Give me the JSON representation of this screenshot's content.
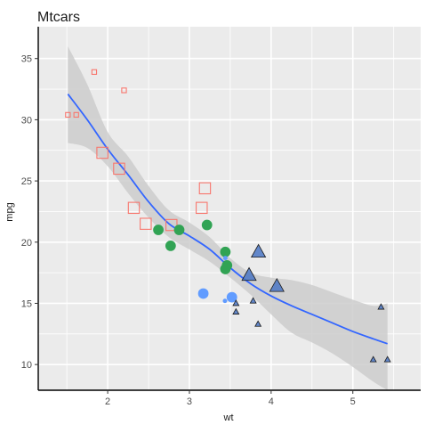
{
  "chart_data": {
    "type": "scatter",
    "title": "Mtcars",
    "xlabel": "wt",
    "ylabel": "mpg",
    "xlim": [
      1.15,
      5.83
    ],
    "ylim": [
      7.9,
      37.6
    ],
    "x_ticks": [
      2,
      3,
      4,
      5
    ],
    "y_ticks": [
      10,
      15,
      20,
      25,
      30,
      35
    ],
    "grid": true,
    "legend": "none",
    "colors": {
      "panel_background": "#ebebeb",
      "grid_line": "#ffffff",
      "smooth_line": "#3366ff",
      "confidence_band": "#cccccc",
      "group_square": "#f8766d",
      "group_circle": "#31a354",
      "group_dot": "#619cff",
      "group_triangle": "#4a75c4"
    },
    "series": [
      {
        "marker": "square-open",
        "color": "#f8766d",
        "points": [
          {
            "x": 1.513,
            "y": 30.4,
            "size": 1
          },
          {
            "x": 1.615,
            "y": 30.4,
            "size": 1
          },
          {
            "x": 1.835,
            "y": 33.9,
            "size": 1
          },
          {
            "x": 2.2,
            "y": 32.4,
            "size": 1
          },
          {
            "x": 1.935,
            "y": 27.3,
            "size": 3
          },
          {
            "x": 2.14,
            "y": 26.0,
            "size": 3
          },
          {
            "x": 2.32,
            "y": 22.8,
            "size": 3
          },
          {
            "x": 2.465,
            "y": 21.5,
            "size": 3
          },
          {
            "x": 2.78,
            "y": 21.4,
            "size": 3
          },
          {
            "x": 3.15,
            "y": 22.8,
            "size": 3
          },
          {
            "x": 3.19,
            "y": 24.4,
            "size": 3
          }
        ]
      },
      {
        "marker": "circle-filled",
        "color": "#31a354",
        "points": [
          {
            "x": 2.62,
            "y": 21.0,
            "size": 3
          },
          {
            "x": 2.875,
            "y": 21.0,
            "size": 3
          },
          {
            "x": 2.77,
            "y": 19.7,
            "size": 3
          },
          {
            "x": 3.215,
            "y": 21.4,
            "size": 3
          },
          {
            "x": 3.44,
            "y": 19.2,
            "size": 3
          },
          {
            "x": 3.44,
            "y": 17.8,
            "size": 3
          },
          {
            "x": 3.46,
            "y": 18.1,
            "size": 3
          }
        ]
      },
      {
        "marker": "circle-filled",
        "color": "#619cff",
        "points": [
          {
            "x": 3.17,
            "y": 15.8,
            "size": 3
          },
          {
            "x": 3.435,
            "y": 15.2,
            "size": 1
          },
          {
            "x": 3.52,
            "y": 15.5,
            "size": 3
          },
          {
            "x": 3.44,
            "y": 18.7,
            "size": 1
          }
        ]
      },
      {
        "marker": "triangle-filled",
        "color": "#4a75c4",
        "points": [
          {
            "x": 3.57,
            "y": 14.3,
            "size": 1
          },
          {
            "x": 3.57,
            "y": 15.0,
            "size": 1
          },
          {
            "x": 3.73,
            "y": 17.3,
            "size": 3
          },
          {
            "x": 3.78,
            "y": 15.2,
            "size": 1
          },
          {
            "x": 3.84,
            "y": 13.3,
            "size": 1
          },
          {
            "x": 3.845,
            "y": 19.2,
            "size": 3
          },
          {
            "x": 4.07,
            "y": 16.4,
            "size": 3
          },
          {
            "x": 5.25,
            "y": 10.4,
            "size": 1
          },
          {
            "x": 5.345,
            "y": 14.7,
            "size": 1
          },
          {
            "x": 5.424,
            "y": 10.4,
            "size": 1
          }
        ]
      }
    ],
    "smooth": {
      "x": [
        1.513,
        1.75,
        2.0,
        2.25,
        2.5,
        2.75,
        3.0,
        3.25,
        3.5,
        3.75,
        4.0,
        4.25,
        4.5,
        4.75,
        5.0,
        5.25,
        5.424
      ],
      "y": [
        32.1,
        30.0,
        27.6,
        25.5,
        23.3,
        21.5,
        20.5,
        19.4,
        17.9,
        16.6,
        15.6,
        14.8,
        14.1,
        13.4,
        12.7,
        12.1,
        11.7
      ],
      "lower": [
        28.1,
        27.7,
        26.2,
        24.0,
        22.0,
        20.4,
        19.4,
        18.4,
        17.1,
        15.7,
        14.1,
        12.6,
        11.8,
        10.9,
        9.8,
        8.6,
        7.9
      ],
      "upper": [
        36.0,
        32.9,
        29.0,
        27.0,
        24.6,
        22.6,
        21.6,
        20.4,
        18.7,
        17.5,
        17.1,
        16.9,
        16.5,
        15.9,
        15.3,
        14.8,
        15.0
      ]
    }
  }
}
